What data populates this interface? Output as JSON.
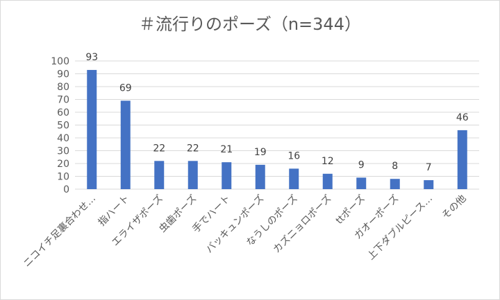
{
  "chart_data": {
    "type": "bar",
    "title": "＃流行りのポーズ（n=344）",
    "categories": [
      "ニコイチ足裏合わせ…",
      "指ハート",
      "エライザポーズ",
      "虫歯ポーズ",
      "手でハート",
      "バッキュンポーズ",
      "なうしのポーズ",
      "カズニョロポーズ",
      "ttポーズ",
      "ガオーポーズ",
      "上下ダブルピース…",
      "その他"
    ],
    "values": [
      93,
      69,
      22,
      22,
      21,
      19,
      16,
      12,
      9,
      8,
      7,
      46
    ],
    "ylim": [
      0,
      100
    ],
    "yticks": [
      0,
      10,
      20,
      30,
      40,
      50,
      60,
      70,
      80,
      90,
      100
    ],
    "bar_color": "#4472c4",
    "grid": true,
    "legend": "none"
  }
}
